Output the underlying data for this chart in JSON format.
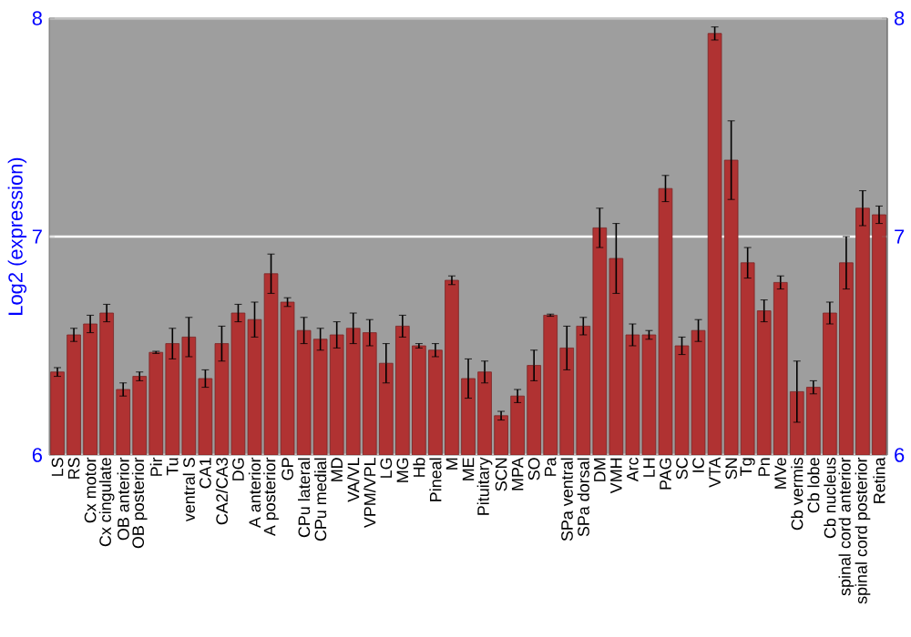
{
  "chart_data": {
    "type": "bar",
    "ylabel": "Log2 (expression)",
    "categories": [
      "LS",
      "RS",
      "Cx motor",
      "Cx cingulate",
      "OB anterior",
      "OB posterior",
      "Pir",
      "Tu",
      "ventral S",
      "CA1",
      "CA2/CA3",
      "DG",
      "A anterior",
      "A posterior",
      "GP",
      "CPu lateral",
      "CPu medial",
      "MD",
      "VA/VL",
      "VPM/VPL",
      "LG",
      "MG",
      "Hb",
      "Pineal",
      "M",
      "ME",
      "Pituitary",
      "SCN",
      "MPA",
      "SO",
      "Pa",
      "SPa ventral",
      "SPa dorsal",
      "DM",
      "VMH",
      "Arc",
      "LH",
      "PAG",
      "SC",
      "IC",
      "VTA",
      "SN",
      "Tg",
      "Pn",
      "MVe",
      "Cb vermis",
      "Cb lobe",
      "Cb nucleus",
      "spinal cord anterior",
      "spinal cord posterior",
      "Retina"
    ],
    "values": [
      6.38,
      6.55,
      6.6,
      6.65,
      6.3,
      6.36,
      6.47,
      6.51,
      6.54,
      6.35,
      6.51,
      6.65,
      6.62,
      6.83,
      6.7,
      6.57,
      6.53,
      6.55,
      6.58,
      6.56,
      6.42,
      6.59,
      6.5,
      6.48,
      6.8,
      6.35,
      6.38,
      6.18,
      6.27,
      6.41,
      6.64,
      6.49,
      6.59,
      7.04,
      6.9,
      6.55,
      6.55,
      7.22,
      6.5,
      6.57,
      7.93,
      7.35,
      6.88,
      6.66,
      6.79,
      6.29,
      6.31,
      6.65,
      6.88,
      7.13,
      7.1
    ],
    "errors": [
      0.02,
      0.03,
      0.04,
      0.04,
      0.03,
      0.02,
      0.005,
      0.07,
      0.09,
      0.04,
      0.08,
      0.04,
      0.08,
      0.09,
      0.02,
      0.06,
      0.05,
      0.06,
      0.07,
      0.06,
      0.09,
      0.05,
      0.01,
      0.03,
      0.02,
      0.09,
      0.05,
      0.02,
      0.03,
      0.07,
      0.005,
      0.1,
      0.04,
      0.09,
      0.16,
      0.05,
      0.02,
      0.06,
      0.04,
      0.05,
      0.03,
      0.18,
      0.07,
      0.05,
      0.03,
      0.14,
      0.03,
      0.05,
      0.12,
      0.08,
      0.04
    ],
    "color": "#b03232",
    "ylim": [
      6,
      8
    ],
    "yticks": [
      6,
      7,
      8
    ],
    "y2lim": [
      6,
      8
    ],
    "y2ticks": [
      6,
      7,
      8
    ],
    "grid": "y"
  }
}
